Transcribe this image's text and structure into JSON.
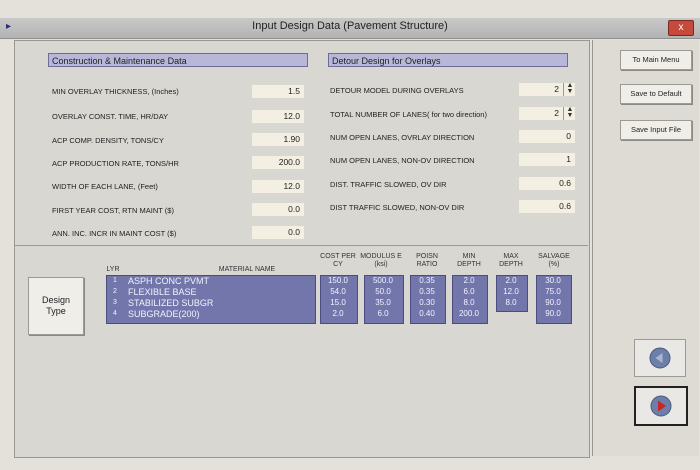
{
  "window": {
    "title": "Input Design Data (Pavement Structure)",
    "close_label": "x"
  },
  "construction": {
    "header": "Construction & Maintenance Data",
    "fields": [
      {
        "label": "MIN OVERLAY THICKNESS, (Inches)",
        "value": "1.5"
      },
      {
        "label": "OVERLAY CONST. TIME, HR/DAY",
        "value": "12.0"
      },
      {
        "label": "ACP COMP. DENSITY, TONS/CY",
        "value": "1.90"
      },
      {
        "label": "ACP PRODUCTION RATE, TONS/HR",
        "value": "200.0"
      },
      {
        "label": "WIDTH OF EACH LANE, (Feet)",
        "value": "12.0"
      },
      {
        "label": "FIRST YEAR COST, RTN MAINT ($)",
        "value": "0.0"
      },
      {
        "label": "ANN. INC. INCR IN MAINT COST ($)",
        "value": "0.0"
      }
    ]
  },
  "detour": {
    "header": "Detour Design for Overlays",
    "fields": [
      {
        "label": "DETOUR MODEL DURING OVERLAYS",
        "value": "2"
      },
      {
        "label": "TOTAL NUMBER OF LANES( for two direction)",
        "value": "2"
      },
      {
        "label": "NUM OPEN LANES, OVRLAY DIRECTION",
        "value": "0"
      },
      {
        "label": "NUM OPEN LANES, NON-OV DIRECTION",
        "value": "1"
      },
      {
        "label": "DIST. TRAFFIC SLOWED, OV DIR",
        "value": "0.6"
      },
      {
        "label": "DIST TRAFFIC SLOWED, NON-OV DIR",
        "value": "0.6"
      }
    ]
  },
  "buttons": {
    "main_menu": "To Main Menu",
    "save_default": "Save to Default",
    "save_input": "Save Input File",
    "design_type": "Design Type"
  },
  "table": {
    "headers": {
      "lyr": "LYR",
      "material": "MATERIAL NAME",
      "cost": "COST PER CY",
      "modulus": "MODULUS E (ksi)",
      "poisn": "POISN RATIO",
      "min_depth": "MIN DEPTH",
      "max_depth": "MAX DEPTH",
      "salvage": "SALVAGE (%)"
    },
    "rows": [
      {
        "lyr": "1",
        "material": "ASPH CONC PVMT",
        "cost": "150.0",
        "modulus": "500.0",
        "poisn": "0.35",
        "min_depth": "2.0",
        "max_depth": "2.0",
        "salvage": "30.0"
      },
      {
        "lyr": "2",
        "material": "FLEXIBLE BASE",
        "cost": "54.0",
        "modulus": "50.0",
        "poisn": "0.35",
        "min_depth": "6.0",
        "max_depth": "12.0",
        "salvage": "75.0"
      },
      {
        "lyr": "3",
        "material": "STABILIZED SUBGR",
        "cost": "15.0",
        "modulus": "35.0",
        "poisn": "0.30",
        "min_depth": "8.0",
        "max_depth": "8.0",
        "salvage": "90.0"
      },
      {
        "lyr": "4",
        "material": "SUBGRADE(200)",
        "cost": "2.0",
        "modulus": "6.0",
        "poisn": "0.40",
        "min_depth": "200.0",
        "max_depth": "",
        "salvage": "90.0"
      }
    ]
  },
  "colors": {
    "accent": "#7376ab",
    "header_bg": "#b8b7d8",
    "nav_next": "#c8242a",
    "nav_prev": "#6d7ea8"
  },
  "icons": {
    "prev": "left-arrow-icon",
    "next": "right-arrow-icon"
  }
}
